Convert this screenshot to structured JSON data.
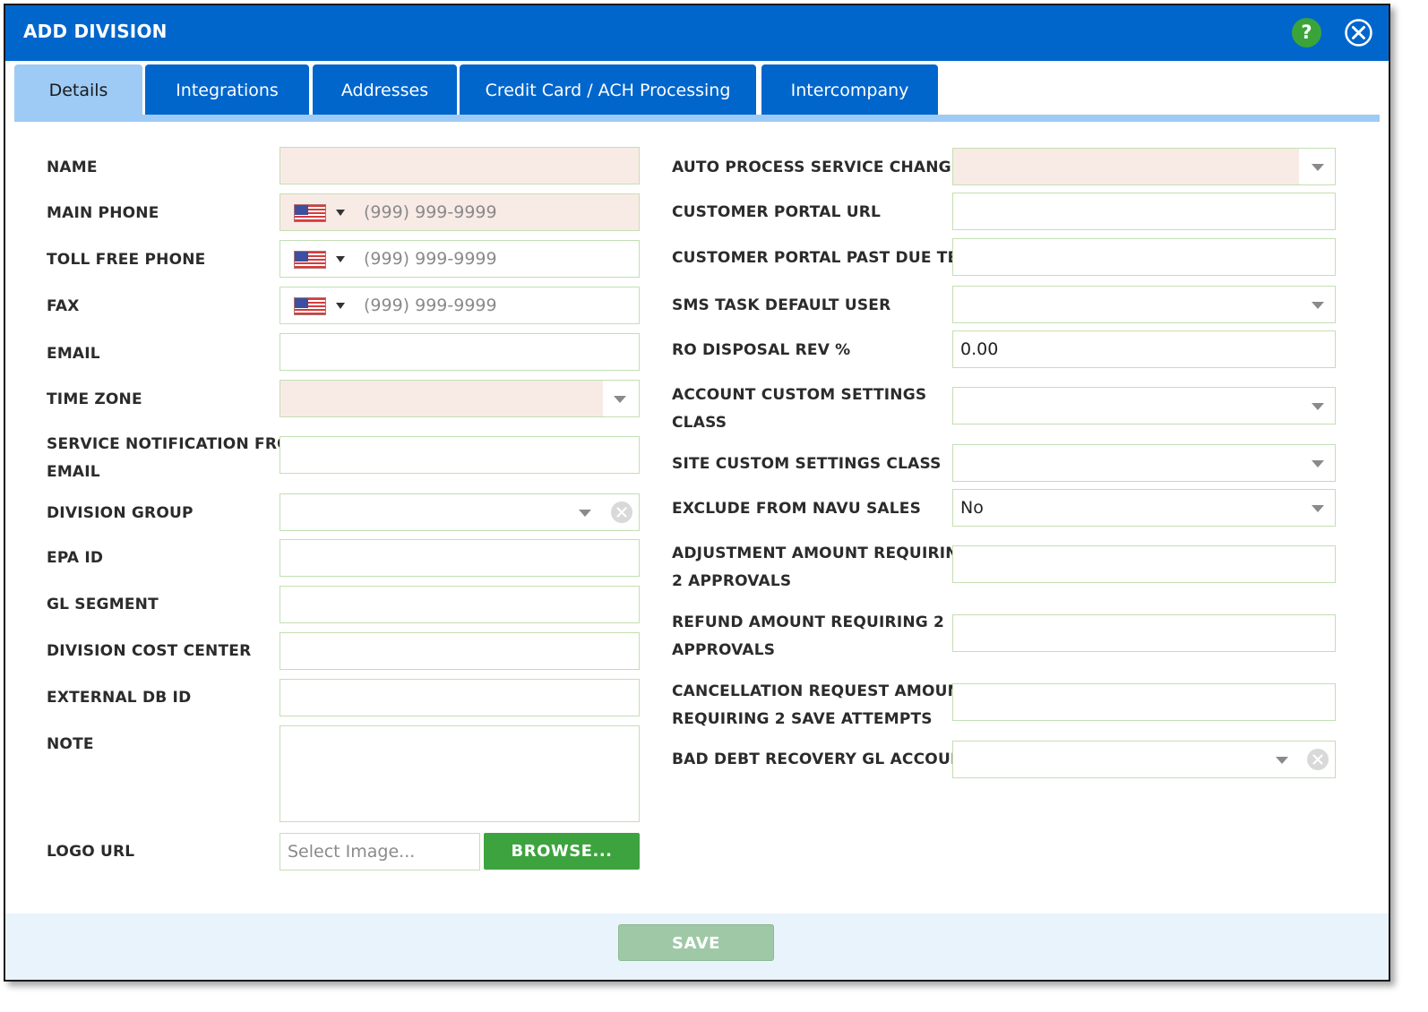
{
  "dialog": {
    "title": "ADD DIVISION",
    "help_label": "?"
  },
  "tabs": [
    {
      "label": "Details",
      "active": true
    },
    {
      "label": "Integrations",
      "active": false
    },
    {
      "label": "Addresses",
      "active": false
    },
    {
      "label": "Credit Card / ACH Processing",
      "active": false
    },
    {
      "label": "Intercompany",
      "active": false
    }
  ],
  "left": {
    "name": {
      "label": "NAME",
      "value": ""
    },
    "main_phone": {
      "label": "MAIN PHONE",
      "placeholder": "(999) 999-9999",
      "country": "us-flag-icon"
    },
    "toll_free_phone": {
      "label": "TOLL FREE PHONE",
      "placeholder": "(999) 999-9999",
      "country": "us-flag-icon"
    },
    "fax": {
      "label": "FAX",
      "placeholder": "(999) 999-9999",
      "country": "us-flag-icon"
    },
    "email": {
      "label": "EMAIL",
      "value": ""
    },
    "time_zone": {
      "label": "TIME ZONE",
      "value": ""
    },
    "service_notification": {
      "label_line1": "SERVICE NOTIFICATION FROM",
      "label_line2": "EMAIL",
      "value": ""
    },
    "division_group": {
      "label": "DIVISION GROUP",
      "value": ""
    },
    "epa_id": {
      "label": "EPA ID",
      "value": ""
    },
    "gl_segment": {
      "label": "GL SEGMENT",
      "value": ""
    },
    "division_cost_center": {
      "label": "DIVISION COST CENTER",
      "value": ""
    },
    "external_db_id": {
      "label": "EXTERNAL DB ID",
      "value": ""
    },
    "note": {
      "label": "NOTE",
      "value": ""
    },
    "logo_url": {
      "label": "LOGO URL",
      "placeholder": "Select Image...",
      "browse_label": "BROWSE..."
    }
  },
  "right": {
    "auto_process": {
      "label": "AUTO PROCESS SERVICE CHANGES",
      "value": ""
    },
    "portal_url": {
      "label": "CUSTOMER PORTAL URL",
      "value": ""
    },
    "portal_past_due": {
      "label": "CUSTOMER PORTAL PAST DUE TEXT",
      "value": ""
    },
    "sms_user": {
      "label": "SMS TASK DEFAULT USER",
      "value": ""
    },
    "ro_disposal": {
      "label": "RO DISPOSAL REV %",
      "value": "0.00"
    },
    "account_custom": {
      "label_line1": "ACCOUNT CUSTOM SETTINGS",
      "label_line2": "CLASS",
      "value": ""
    },
    "site_custom": {
      "label": "SITE CUSTOM SETTINGS CLASS",
      "value": ""
    },
    "exclude_navu": {
      "label": "EXCLUDE FROM NAVU SALES",
      "value": "No"
    },
    "adjustment_amount": {
      "label_line1": "ADJUSTMENT AMOUNT REQUIRING",
      "label_line2": "2 APPROVALS",
      "value": ""
    },
    "refund_amount": {
      "label_line1": "REFUND AMOUNT REQUIRING 2",
      "label_line2": "APPROVALS",
      "value": ""
    },
    "cancellation_amount": {
      "label_line1": "CANCELLATION REQUEST AMOUNT",
      "label_line2": "REQUIRING 2 SAVE ATTEMPTS",
      "value": ""
    },
    "bad_debt": {
      "label": "BAD DEBT RECOVERY GL ACCOUNT",
      "value": ""
    }
  },
  "footer": {
    "save_label": "SAVE"
  },
  "colors": {
    "title_bar": "#0066cc",
    "tab_active": "#9dcbf5",
    "required_field": "#f8ebe6",
    "field_border": "#c3dfb3",
    "browse_button": "#3da33f",
    "save_button_disabled": "#9fc8a7",
    "help_button": "#3aa43a"
  }
}
